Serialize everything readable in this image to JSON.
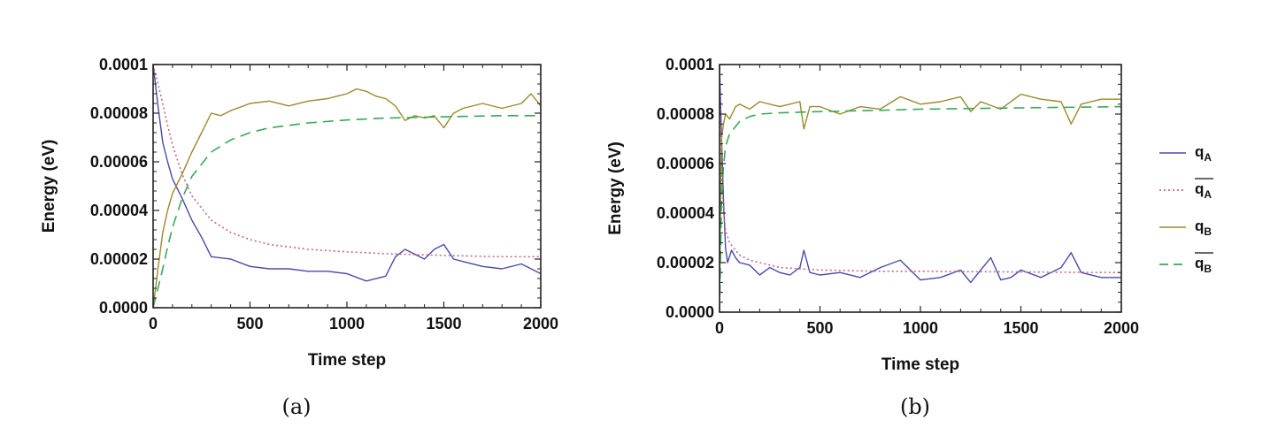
{
  "chart_data": [
    {
      "type": "line",
      "panel_label": "(a)",
      "xlabel": "Time step",
      "ylabel": "Energy (eV)",
      "xlim": [
        0,
        2000
      ],
      "ylim": [
        0,
        0.0001
      ],
      "x_ticks": [
        0,
        500,
        1000,
        1500,
        2000
      ],
      "x_tick_labels": [
        "0",
        "500",
        "1000",
        "1500",
        "2000"
      ],
      "y_ticks": [
        0,
        2e-05,
        4e-05,
        6e-05,
        8e-05,
        0.0001
      ],
      "y_tick_labels": [
        "0.0000",
        "0.00002",
        "0.00004",
        "0.00006",
        "0.00008",
        "0.0001"
      ],
      "grid": false,
      "series": [
        {
          "name": "qA",
          "style": "solid",
          "color": "#4a4aa8",
          "x": [
            0,
            25,
            50,
            75,
            100,
            150,
            200,
            250,
            300,
            400,
            500,
            600,
            700,
            800,
            900,
            1000,
            1100,
            1200,
            1250,
            1300,
            1350,
            1400,
            1450,
            1500,
            1550,
            1600,
            1700,
            1800,
            1900,
            2000
          ],
          "y": [
            0.0001,
            8.3e-05,
            6.8e-05,
            6e-05,
            5.3e-05,
            4.5e-05,
            3.6e-05,
            2.9e-05,
            2.1e-05,
            2e-05,
            1.7e-05,
            1.6e-05,
            1.6e-05,
            1.5e-05,
            1.5e-05,
            1.4e-05,
            1.1e-05,
            1.3e-05,
            2.1e-05,
            2.4e-05,
            2.2e-05,
            2e-05,
            2.4e-05,
            2.6e-05,
            2e-05,
            1.9e-05,
            1.7e-05,
            1.6e-05,
            1.8e-05,
            1.4e-05
          ]
        },
        {
          "name": "qA-mean",
          "style": "dotted",
          "color": "#c06a8a",
          "x": [
            0,
            25,
            50,
            75,
            100,
            150,
            200,
            300,
            400,
            500,
            600,
            800,
            1000,
            1200,
            1500,
            1800,
            2000
          ],
          "y": [
            0.0001,
            9.2e-05,
            8.4e-05,
            7.5e-05,
            6.7e-05,
            5.5e-05,
            4.6e-05,
            3.6e-05,
            3.1e-05,
            2.8e-05,
            2.6e-05,
            2.4e-05,
            2.3e-05,
            2.22e-05,
            2.15e-05,
            2.1e-05,
            2.1e-05
          ]
        },
        {
          "name": "qB",
          "style": "solid",
          "color": "#9a8a2e",
          "x": [
            0,
            25,
            50,
            75,
            100,
            150,
            200,
            250,
            300,
            350,
            400,
            500,
            600,
            700,
            800,
            900,
            1000,
            1050,
            1100,
            1150,
            1200,
            1250,
            1300,
            1350,
            1400,
            1450,
            1500,
            1550,
            1600,
            1700,
            1800,
            1900,
            1950,
            2000
          ],
          "y": [
            0,
            1.6e-05,
            3.1e-05,
            4e-05,
            4.7e-05,
            5.5e-05,
            6.4e-05,
            7.2e-05,
            8e-05,
            7.9e-05,
            8.1e-05,
            8.4e-05,
            8.5e-05,
            8.3e-05,
            8.5e-05,
            8.6e-05,
            8.8e-05,
            9e-05,
            8.9e-05,
            8.7e-05,
            8.6e-05,
            8.3e-05,
            7.7e-05,
            7.9e-05,
            7.8e-05,
            7.9e-05,
            7.4e-05,
            8e-05,
            8.2e-05,
            8.4e-05,
            8.2e-05,
            8.4e-05,
            8.8e-05,
            8.3e-05
          ]
        },
        {
          "name": "qB-mean",
          "style": "dashed",
          "color": "#3aa85a",
          "x": [
            0,
            25,
            50,
            75,
            100,
            150,
            200,
            300,
            400,
            500,
            600,
            800,
            1000,
            1200,
            1500,
            1800,
            2000
          ],
          "y": [
            0,
            8e-06,
            1.6e-05,
            2.5e-05,
            3.3e-05,
            4.5e-05,
            5.4e-05,
            6.4e-05,
            6.9e-05,
            7.2e-05,
            7.4e-05,
            7.6e-05,
            7.72e-05,
            7.8e-05,
            7.85e-05,
            7.9e-05,
            7.9e-05
          ]
        }
      ]
    },
    {
      "type": "line",
      "panel_label": "(b)",
      "xlabel": "Time step",
      "ylabel": "Energy (eV)",
      "xlim": [
        0,
        2000
      ],
      "ylim": [
        0,
        0.0001
      ],
      "x_ticks": [
        0,
        500,
        1000,
        1500,
        2000
      ],
      "x_tick_labels": [
        "0",
        "500",
        "1000",
        "1500",
        "2000"
      ],
      "y_ticks": [
        0,
        2e-05,
        4e-05,
        6e-05,
        8e-05,
        0.0001
      ],
      "y_tick_labels": [
        "0.0000",
        "0.00002",
        "0.00004",
        "0.00006",
        "0.00008",
        "0.0001"
      ],
      "grid": false,
      "series": [
        {
          "name": "qA",
          "style": "solid",
          "color": "#4a4aa8",
          "x": [
            0,
            10,
            20,
            30,
            40,
            60,
            80,
            100,
            150,
            200,
            250,
            300,
            350,
            400,
            420,
            450,
            500,
            600,
            700,
            800,
            900,
            1000,
            1100,
            1200,
            1250,
            1300,
            1350,
            1400,
            1450,
            1500,
            1600,
            1700,
            1750,
            1800,
            1900,
            2000
          ],
          "y": [
            0.0001,
            7e-05,
            4.5e-05,
            2.6e-05,
            2e-05,
            2.5e-05,
            2.2e-05,
            2e-05,
            1.9e-05,
            1.5e-05,
            1.8e-05,
            1.6e-05,
            1.5e-05,
            1.8e-05,
            2.5e-05,
            1.6e-05,
            1.5e-05,
            1.6e-05,
            1.4e-05,
            1.8e-05,
            2.1e-05,
            1.3e-05,
            1.4e-05,
            1.7e-05,
            1.2e-05,
            1.7e-05,
            2.2e-05,
            1.3e-05,
            1.4e-05,
            1.7e-05,
            1.4e-05,
            1.8e-05,
            2.4e-05,
            1.6e-05,
            1.4e-05,
            1.4e-05
          ]
        },
        {
          "name": "qA-mean",
          "style": "dotted",
          "color": "#c06a8a",
          "x": [
            0,
            10,
            20,
            30,
            50,
            80,
            100,
            150,
            200,
            300,
            500,
            800,
            1000,
            1500,
            2000
          ],
          "y": [
            0.0001,
            5.5e-05,
            4.1e-05,
            3.3e-05,
            2.8e-05,
            2.5e-05,
            2.3e-05,
            2.1e-05,
            2e-05,
            1.8e-05,
            1.7e-05,
            1.65e-05,
            1.65e-05,
            1.62e-05,
            1.6e-05
          ]
        },
        {
          "name": "qB",
          "style": "solid",
          "color": "#9a8a2e",
          "x": [
            0,
            5,
            10,
            20,
            30,
            50,
            80,
            100,
            150,
            200,
            300,
            400,
            420,
            450,
            500,
            600,
            700,
            800,
            900,
            1000,
            1100,
            1200,
            1250,
            1300,
            1400,
            1500,
            1600,
            1700,
            1750,
            1800,
            1900,
            2000
          ],
          "y": [
            0,
            4.5e-05,
            7e-05,
            7.6e-05,
            8e-05,
            7.8e-05,
            8.3e-05,
            8.4e-05,
            8.2e-05,
            8.5e-05,
            8.3e-05,
            8.5e-05,
            7.4e-05,
            8.3e-05,
            8.3e-05,
            8e-05,
            8.3e-05,
            8.2e-05,
            8.7e-05,
            8.4e-05,
            8.5e-05,
            8.7e-05,
            8.1e-05,
            8.5e-05,
            8.2e-05,
            8.8e-05,
            8.6e-05,
            8.5e-05,
            7.6e-05,
            8.4e-05,
            8.6e-05,
            8.6e-05
          ]
        },
        {
          "name": "qB-mean",
          "style": "dashed",
          "color": "#3aa85a",
          "x": [
            0,
            10,
            20,
            30,
            50,
            80,
            100,
            150,
            200,
            300,
            500,
            800,
            1000,
            1500,
            2000
          ],
          "y": [
            0,
            4.6e-05,
            5.9e-05,
            6.7e-05,
            7.2e-05,
            7.5e-05,
            7.7e-05,
            7.9e-05,
            8e-05,
            8.05e-05,
            8.1e-05,
            8.15e-05,
            8.2e-05,
            8.25e-05,
            8.3e-05
          ]
        }
      ]
    }
  ],
  "legend": {
    "placement": "right",
    "entries": [
      {
        "series": "qA",
        "label_main": "q",
        "label_sub": "A",
        "overline": false,
        "style": "solid",
        "color": "#4a4aa8"
      },
      {
        "series": "qA-mean",
        "label_main": "q",
        "label_sub": "A",
        "overline": true,
        "style": "dotted",
        "color": "#c06a8a"
      },
      {
        "series": "qB",
        "label_main": "q",
        "label_sub": "B",
        "overline": false,
        "style": "solid",
        "color": "#9a8a2e"
      },
      {
        "series": "qB-mean",
        "label_main": "q",
        "label_sub": "B",
        "overline": true,
        "style": "dashed",
        "color": "#3aa85a"
      }
    ]
  }
}
